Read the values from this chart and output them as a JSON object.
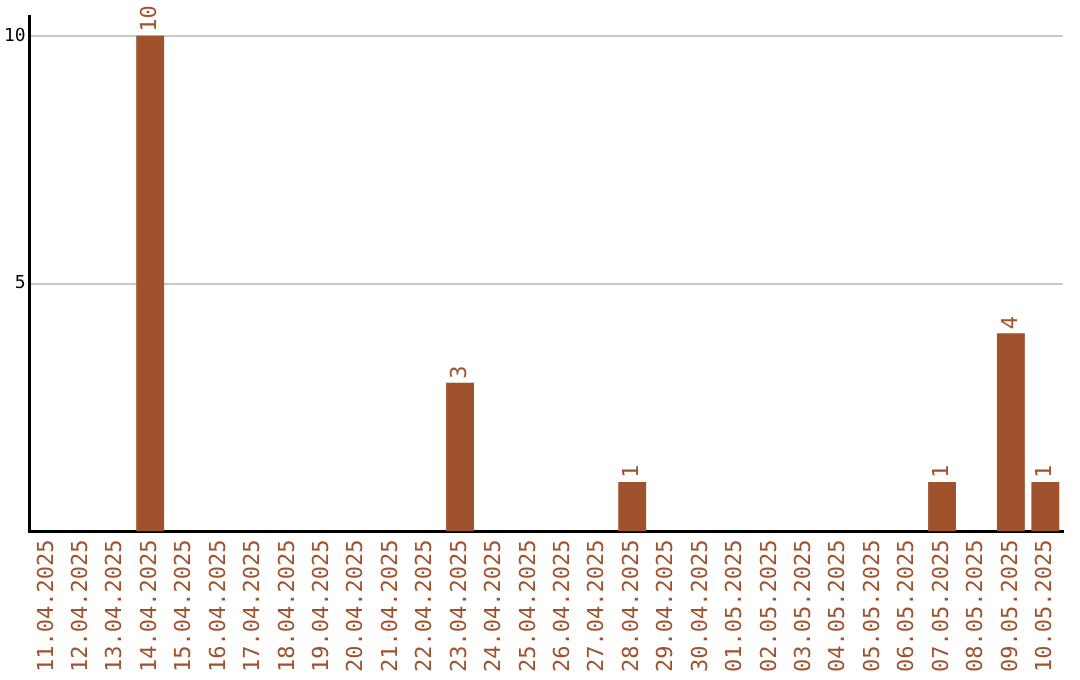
{
  "chart_data": {
    "type": "bar",
    "categories": [
      "11.04.2025",
      "12.04.2025",
      "13.04.2025",
      "14.04.2025",
      "15.04.2025",
      "16.04.2025",
      "17.04.2025",
      "18.04.2025",
      "19.04.2025",
      "20.04.2025",
      "21.04.2025",
      "22.04.2025",
      "23.04.2025",
      "24.04.2025",
      "25.04.2025",
      "26.04.2025",
      "27.04.2025",
      "28.04.2025",
      "29.04.2025",
      "30.04.2025",
      "01.05.2025",
      "02.05.2025",
      "03.05.2025",
      "04.05.2025",
      "05.05.2025",
      "06.05.2025",
      "07.05.2025",
      "08.05.2025",
      "09.05.2025",
      "10.05.2025"
    ],
    "values": [
      null,
      null,
      null,
      10,
      null,
      null,
      null,
      null,
      null,
      null,
      null,
      null,
      3,
      null,
      null,
      null,
      null,
      1,
      null,
      null,
      null,
      null,
      null,
      null,
      null,
      null,
      1,
      null,
      4,
      1
    ],
    "color": "#a0522d",
    "ylim": [
      0,
      10.4
    ],
    "yticks": [
      5,
      10
    ],
    "grid": "y",
    "legend": false,
    "value_labels": [
      null,
      null,
      null,
      "10",
      null,
      null,
      null,
      null,
      null,
      null,
      null,
      null,
      "3",
      null,
      null,
      null,
      null,
      "1",
      null,
      null,
      null,
      null,
      null,
      null,
      null,
      null,
      "1",
      null,
      "4",
      "1"
    ]
  }
}
